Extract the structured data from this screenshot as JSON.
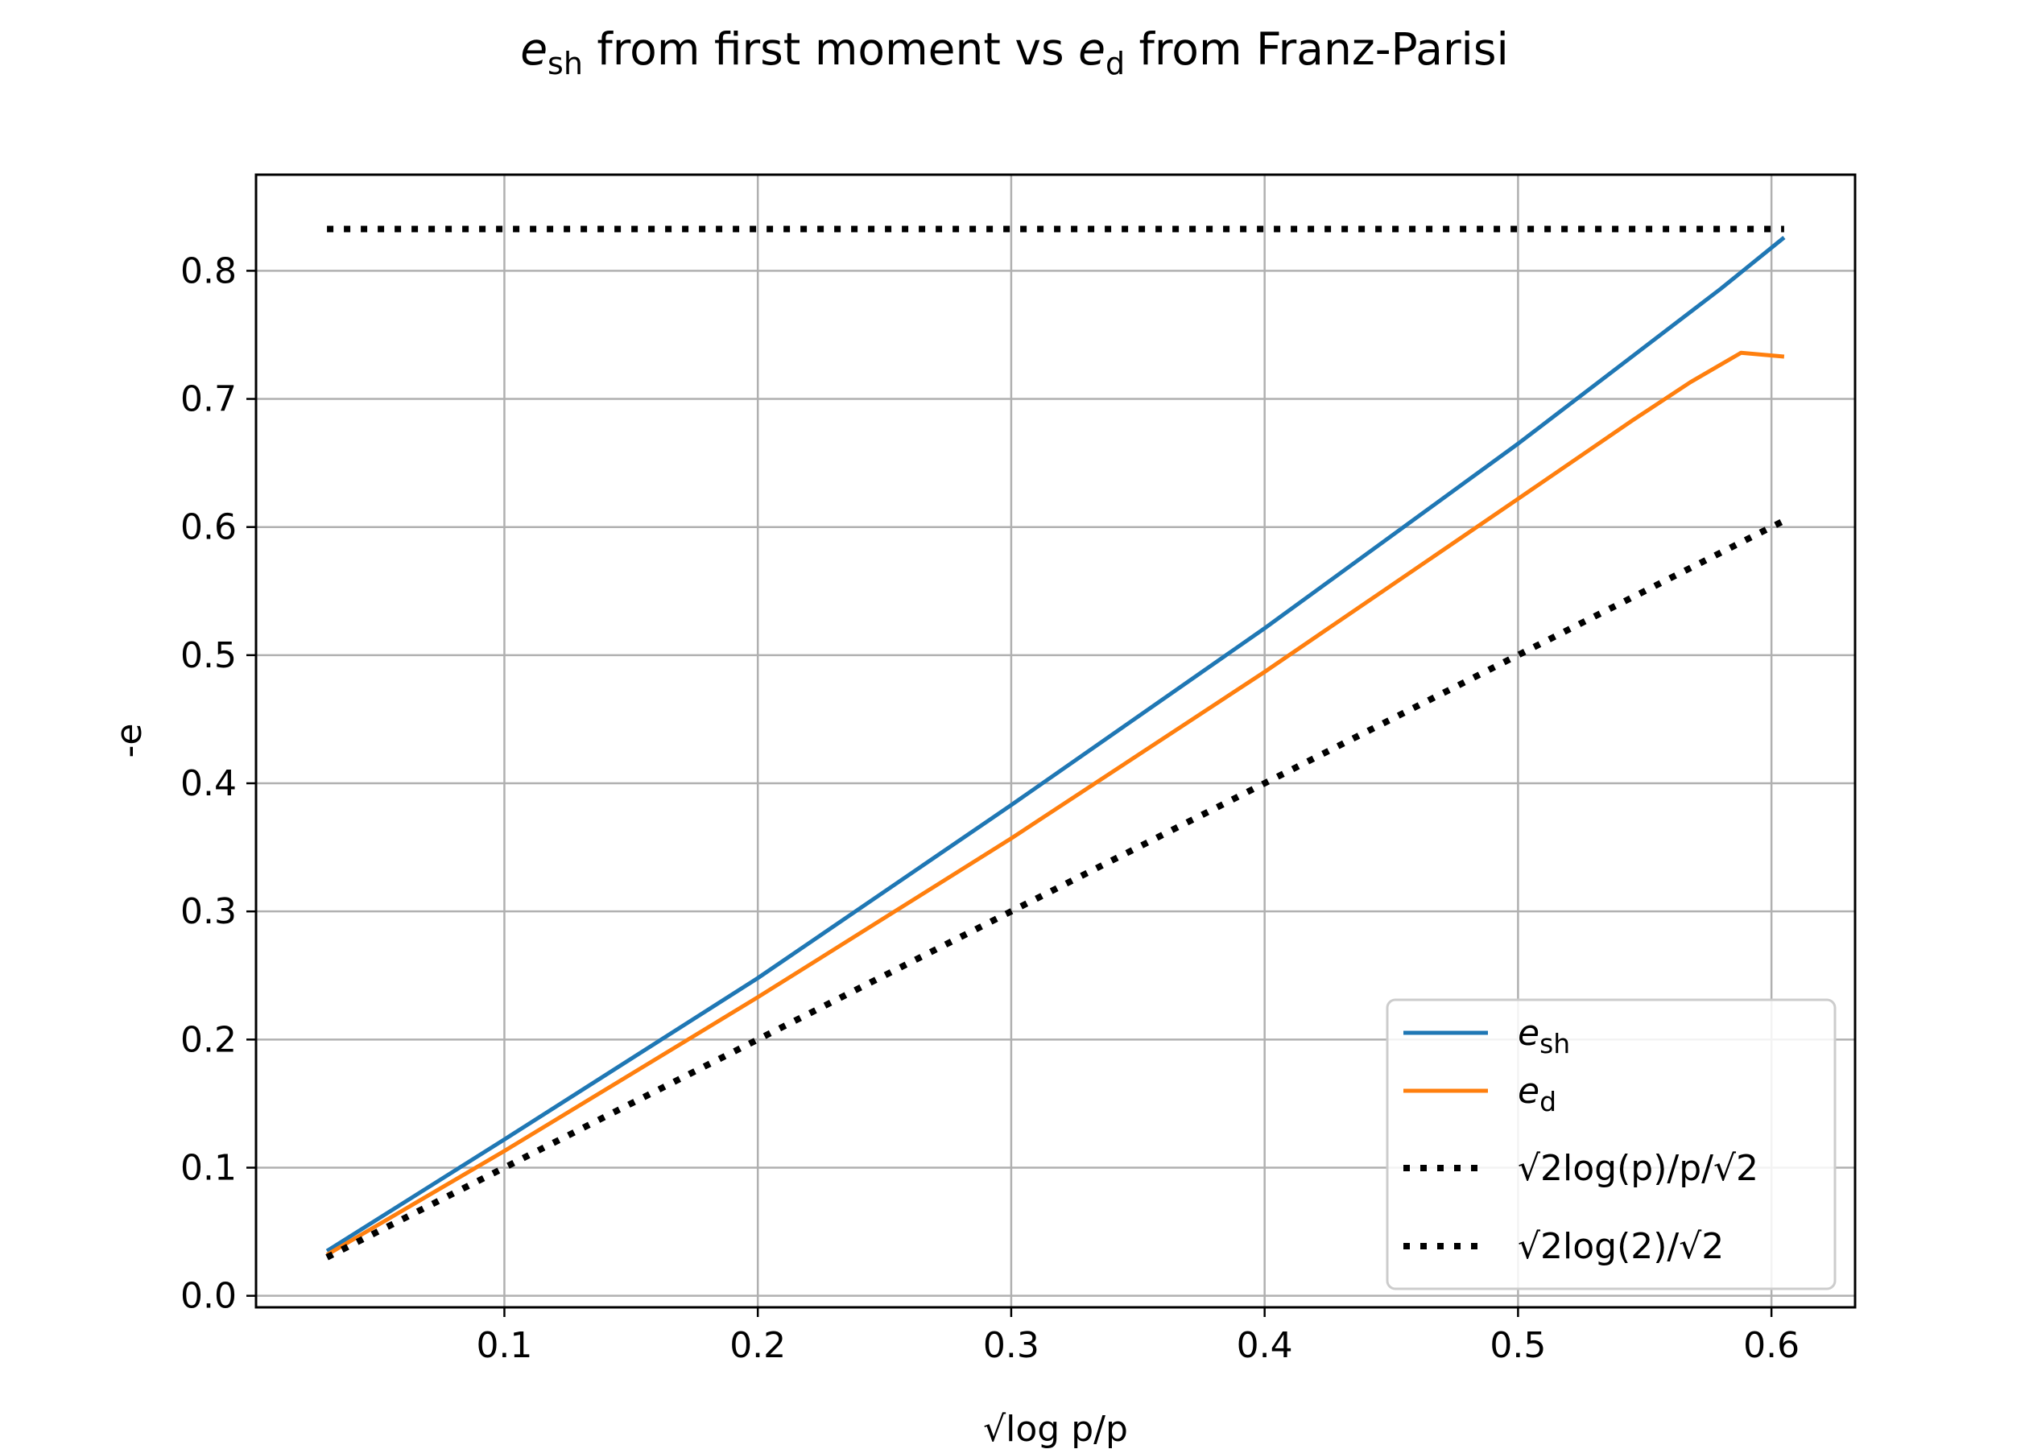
{
  "chart_data": {
    "type": "line",
    "title": {
      "main": "e",
      "main_sub": "sh",
      "mid": " from first moment vs ",
      "second": "e",
      "second_sub": "d",
      "tail": " from Franz-Parisi"
    },
    "xlabel": "√log p/p",
    "ylabel": "-e",
    "xlim": [
      0.002,
      0.633
    ],
    "ylim": [
      -0.009,
      0.875
    ],
    "xticks": [
      0.1,
      0.2,
      0.3,
      0.4,
      0.5,
      0.6
    ],
    "yticks": [
      0.0,
      0.1,
      0.2,
      0.3,
      0.4,
      0.5,
      0.6,
      0.7,
      0.8
    ],
    "grid": true,
    "legend_position": "lower-right",
    "series": [
      {
        "name": "e_sh",
        "legend": {
          "main": "e",
          "sub": "sh"
        },
        "color": "#1f77b4",
        "style": "solid",
        "x": [
          0.03,
          0.1,
          0.2,
          0.3,
          0.4,
          0.5,
          0.58,
          0.605
        ],
        "y": [
          0.035,
          0.122,
          0.248,
          0.383,
          0.521,
          0.665,
          0.786,
          0.826
        ]
      },
      {
        "name": "e_d",
        "legend": {
          "main": "e",
          "sub": "d"
        },
        "color": "#ff7f0e",
        "style": "solid",
        "x": [
          0.03,
          0.1,
          0.2,
          0.3,
          0.4,
          0.5,
          0.545,
          0.568,
          0.588,
          0.605
        ],
        "y": [
          0.032,
          0.113,
          0.233,
          0.357,
          0.487,
          0.622,
          0.683,
          0.713,
          0.736,
          0.733
        ]
      },
      {
        "name": "√2log(p)/p/√2",
        "legend": {
          "label": "√2log(p)/p/√2"
        },
        "color": "#000000",
        "style": "dotted",
        "x": [
          0.03,
          0.605
        ],
        "y": [
          0.03,
          0.605
        ]
      },
      {
        "name": "√2log(2)/√2",
        "legend": {
          "label": "√2log(2)/√2"
        },
        "color": "#000000",
        "style": "dotted",
        "x": [
          0.03,
          0.605
        ],
        "y": [
          0.8326,
          0.8326
        ]
      }
    ]
  }
}
